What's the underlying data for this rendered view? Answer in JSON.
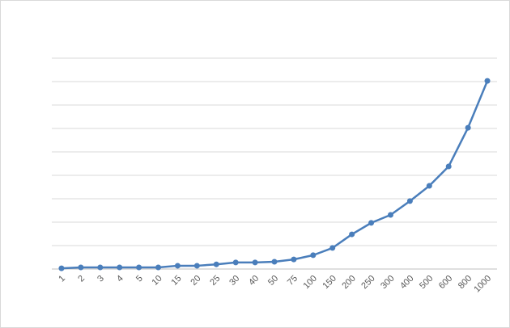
{
  "chart_data": {
    "type": "line",
    "categories": [
      "1",
      "2",
      "3",
      "4",
      "5",
      "10",
      "15",
      "20",
      "25",
      "30",
      "40",
      "50",
      "75",
      "100",
      "150",
      "200",
      "250",
      "300",
      "400",
      "500",
      "600",
      "800",
      "1000"
    ],
    "values": [
      0.03,
      0.07,
      0.07,
      0.07,
      0.07,
      0.07,
      0.14,
      0.14,
      0.2,
      0.28,
      0.28,
      0.31,
      0.41,
      0.59,
      0.9,
      1.48,
      1.97,
      2.31,
      2.9,
      3.55,
      4.38,
      6.03,
      8.03
    ],
    "color": "#4a7ebb",
    "ylim": [
      0,
      9
    ],
    "yticks": [
      0,
      1,
      2,
      3,
      4,
      5,
      6,
      7,
      8,
      9
    ],
    "grid": true
  }
}
